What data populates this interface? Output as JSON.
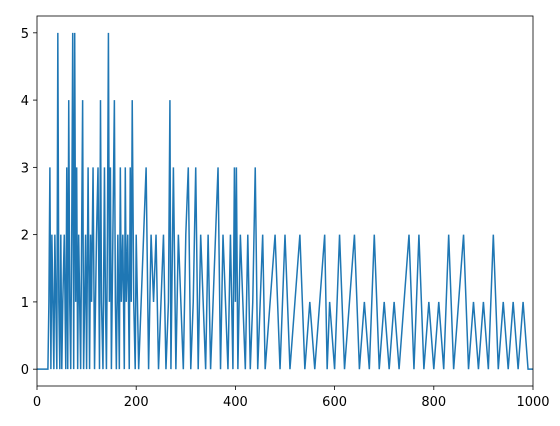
{
  "chart_data": {
    "type": "line",
    "x": [
      0,
      22,
      24,
      26,
      28,
      30,
      32,
      34,
      36,
      38,
      40,
      42,
      44,
      46,
      48,
      50,
      52,
      55,
      58,
      60,
      62,
      64,
      66,
      68,
      70,
      72,
      74,
      76,
      78,
      80,
      82,
      84,
      86,
      88,
      90,
      92,
      94,
      96,
      98,
      100,
      103,
      106,
      108,
      110,
      113,
      116,
      118,
      120,
      123,
      126,
      128,
      130,
      133,
      136,
      138,
      140,
      142,
      144,
      146,
      148,
      150,
      153,
      156,
      158,
      160,
      163,
      166,
      168,
      170,
      173,
      176,
      178,
      180,
      183,
      186,
      188,
      190,
      192,
      195,
      198,
      200,
      205,
      210,
      215,
      220,
      225,
      230,
      235,
      240,
      245,
      250,
      255,
      260,
      265,
      268,
      270,
      275,
      280,
      285,
      290,
      295,
      300,
      305,
      310,
      315,
      320,
      325,
      330,
      335,
      340,
      345,
      350,
      355,
      360,
      365,
      370,
      375,
      380,
      385,
      390,
      395,
      398,
      400,
      402,
      405,
      410,
      415,
      420,
      425,
      430,
      435,
      440,
      445,
      450,
      455,
      460,
      470,
      480,
      490,
      500,
      510,
      520,
      530,
      540,
      550,
      560,
      570,
      580,
      585,
      590,
      600,
      610,
      620,
      630,
      640,
      650,
      660,
      670,
      680,
      690,
      700,
      710,
      720,
      730,
      740,
      750,
      760,
      770,
      780,
      790,
      800,
      810,
      820,
      830,
      840,
      850,
      860,
      870,
      880,
      890,
      900,
      910,
      920,
      930,
      940,
      950,
      960,
      970,
      980,
      990,
      1000
    ],
    "series": [
      {
        "color": "#1f77b4",
        "values": [
          0,
          0,
          1,
          3,
          0,
          2,
          1,
          0,
          2,
          1,
          0,
          5,
          1,
          0,
          2,
          0,
          1,
          2,
          0,
          3,
          0,
          4,
          1,
          0,
          2,
          5,
          0,
          5,
          1,
          3,
          0,
          2,
          1,
          0,
          2,
          4,
          0,
          1,
          2,
          0,
          3,
          0,
          2,
          1,
          3,
          0,
          1,
          2,
          3,
          0,
          4,
          1,
          0,
          3,
          1,
          0,
          2,
          5,
          1,
          3,
          0,
          2,
          4,
          1,
          0,
          2,
          0,
          3,
          1,
          2,
          0,
          3,
          1,
          2,
          0,
          3,
          1,
          4,
          1,
          0,
          2,
          0,
          1,
          2,
          3,
          0,
          2,
          1,
          2,
          0,
          1,
          2,
          0,
          1,
          4,
          0,
          3,
          0,
          2,
          1,
          0,
          2,
          3,
          0,
          1,
          3,
          0,
          2,
          1,
          0,
          2,
          0,
          1,
          2,
          3,
          0,
          2,
          1,
          0,
          2,
          0,
          3,
          1,
          3,
          0,
          2,
          1,
          0,
          2,
          0,
          1,
          3,
          0,
          1,
          2,
          0,
          1,
          2,
          0,
          2,
          0,
          1,
          2,
          0,
          1,
          0,
          1,
          2,
          0,
          1,
          0,
          2,
          0,
          1,
          2,
          0,
          1,
          0,
          2,
          0,
          1,
          0,
          1,
          0,
          1,
          2,
          0,
          2,
          0,
          1,
          0,
          1,
          0,
          2,
          0,
          1,
          2,
          0,
          1,
          0,
          1,
          0,
          2,
          0,
          1,
          0,
          1,
          0,
          1,
          0,
          0
        ]
      }
    ],
    "xlim": [
      0,
      1000
    ],
    "ylim": [
      -0.25,
      5.25
    ],
    "xticks": [
      0,
      200,
      400,
      600,
      800,
      1000
    ],
    "yticks": [
      0,
      1,
      2,
      3,
      4,
      5
    ]
  }
}
